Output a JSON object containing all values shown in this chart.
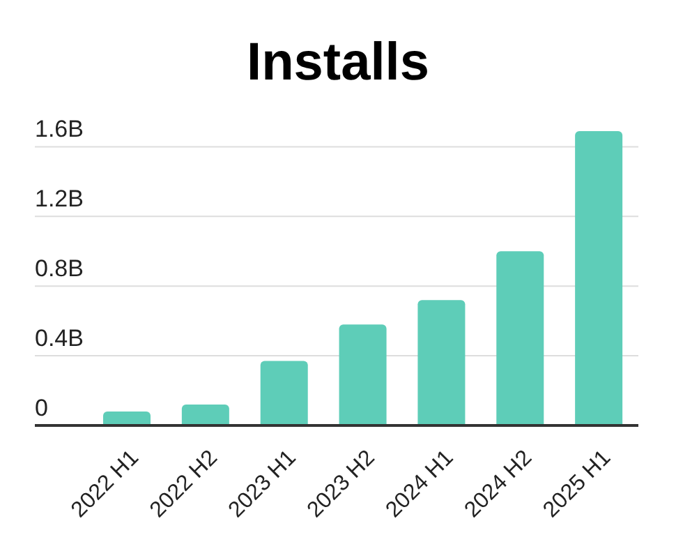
{
  "chart_data": {
    "type": "bar",
    "title": "Installs",
    "categories": [
      "2022 H1",
      "2022 H2",
      "2023 H1",
      "2023 H2",
      "2024 H1",
      "2024 H2",
      "2025 H1"
    ],
    "values": [
      0.08,
      0.12,
      0.37,
      0.58,
      0.72,
      1.0,
      1.69
    ],
    "color": "#5ecdb8",
    "ylim": [
      0,
      1.69
    ],
    "yticks": [
      {
        "value": 0,
        "label": "0"
      },
      {
        "value": 0.4,
        "label": "0.4B"
      },
      {
        "value": 0.8,
        "label": "0.8B"
      },
      {
        "value": 1.2,
        "label": "1.2B"
      },
      {
        "value": 1.6,
        "label": "1.6B"
      }
    ],
    "grid": "y",
    "legend": false
  }
}
